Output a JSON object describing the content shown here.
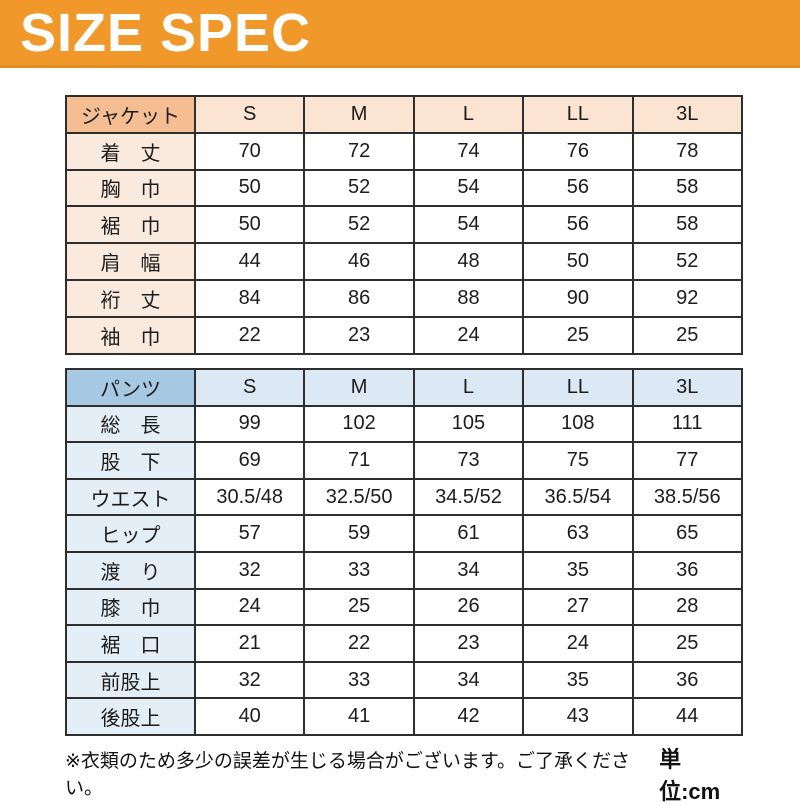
{
  "banner": {
    "title": "SIZE SPEC",
    "bg_color": "#F0992A",
    "text_color": "#FFFFFF"
  },
  "tables": [
    {
      "id": "jacket",
      "header_label": "ジャケット",
      "sizes": [
        "S",
        "M",
        "L",
        "LL",
        "3L"
      ],
      "header_bg": "#F4BE92",
      "sizes_bg": "#FBE4D1",
      "row_label_bg": "#FAEADE",
      "rows": [
        {
          "label": "着　丈",
          "values": [
            "70",
            "72",
            "74",
            "76",
            "78"
          ]
        },
        {
          "label": "胸　巾",
          "values": [
            "50",
            "52",
            "54",
            "56",
            "58"
          ]
        },
        {
          "label": "裾　巾",
          "values": [
            "50",
            "52",
            "54",
            "56",
            "58"
          ]
        },
        {
          "label": "肩　幅",
          "values": [
            "44",
            "46",
            "48",
            "50",
            "52"
          ]
        },
        {
          "label": "裄　丈",
          "values": [
            "84",
            "86",
            "88",
            "90",
            "92"
          ]
        },
        {
          "label": "袖　巾",
          "values": [
            "22",
            "23",
            "24",
            "25",
            "25"
          ]
        }
      ]
    },
    {
      "id": "pants",
      "header_label": "パンツ",
      "sizes": [
        "S",
        "M",
        "L",
        "LL",
        "3L"
      ],
      "header_bg": "#A6C8E2",
      "sizes_bg": "#DCE8F3",
      "row_label_bg": "#E4EEF7",
      "rows": [
        {
          "label": "総　長",
          "values": [
            "99",
            "102",
            "105",
            "108",
            "111"
          ]
        },
        {
          "label": "股　下",
          "values": [
            "69",
            "71",
            "73",
            "75",
            "77"
          ]
        },
        {
          "label": "ウエスト",
          "values": [
            "30.5/48",
            "32.5/50",
            "34.5/52",
            "36.5/54",
            "38.5/56"
          ]
        },
        {
          "label": "ヒップ",
          "values": [
            "57",
            "59",
            "61",
            "63",
            "65"
          ]
        },
        {
          "label": "渡　り",
          "values": [
            "32",
            "33",
            "34",
            "35",
            "36"
          ]
        },
        {
          "label": "膝　巾",
          "values": [
            "24",
            "25",
            "26",
            "27",
            "28"
          ]
        },
        {
          "label": "裾　口",
          "values": [
            "21",
            "22",
            "23",
            "24",
            "25"
          ]
        },
        {
          "label": "前股上",
          "values": [
            "32",
            "33",
            "34",
            "35",
            "36"
          ]
        },
        {
          "label": "後股上",
          "values": [
            "40",
            "41",
            "42",
            "43",
            "44"
          ]
        }
      ]
    }
  ],
  "footer": {
    "disclaimer": "※衣類のため多少の誤差が生じる場合がございます。ご了承ください。",
    "unit_label": "単位:cm"
  }
}
